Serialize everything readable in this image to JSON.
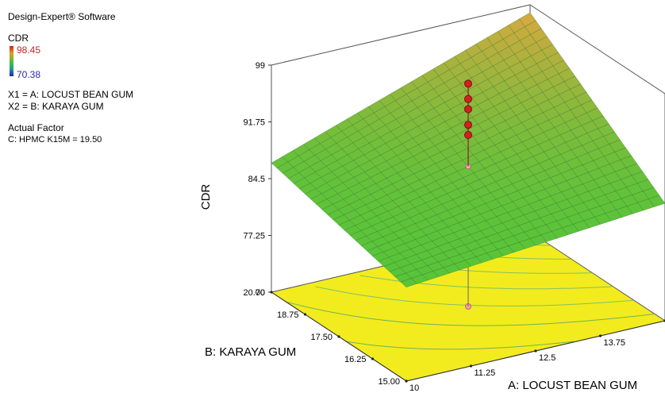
{
  "header": {
    "software": "Design-Expert® Software",
    "response_name": "CDR",
    "response_max": "98.45",
    "response_min": "70.38",
    "x1_def": "X1 = A: LOCUST BEAN GUM",
    "x2_def": "X2 = B: KARAYA GUM",
    "actual_factor_title": "Actual Factor",
    "actual_factor_value": "C:  HPMC K15M = 19.50"
  },
  "colors": {
    "surface": "#58c43a",
    "surface_high": "#d8a840",
    "floor": "#f2ec1e",
    "points": "#d42020",
    "colorbar_top": "#d42020",
    "colorbar_bottom": "#2020c0"
  },
  "chart_data": {
    "type": "surface3d",
    "title": "",
    "xlabel": "A: LOCUST BEAN GUM",
    "ylabel": "B: KARAYA GUM",
    "zlabel": "CDR",
    "xlim": [
      10,
      15
    ],
    "ylim": [
      15,
      20
    ],
    "zlim": [
      70,
      99
    ],
    "x_ticks": [
      "10",
      "11.25",
      "12.5",
      "13.75",
      "15"
    ],
    "y_ticks": [
      "15.00",
      "16.25",
      "17.50",
      "18.75",
      "20.00"
    ],
    "z_ticks": [
      "70",
      "77.25",
      "84.5",
      "91.75",
      "99"
    ],
    "surface_corners": {
      "x10_y15": 82.0,
      "x15_y15": 85.0,
      "x10_y20": 86.5,
      "x15_y20": 98.0
    },
    "design_points": [
      {
        "x": 12.5,
        "y": 17.5,
        "z": 98.45
      },
      {
        "x": 12.5,
        "y": 17.5,
        "z": 96.5
      },
      {
        "x": 12.5,
        "y": 17.5,
        "z": 95.2
      },
      {
        "x": 12.5,
        "y": 17.5,
        "z": 93.2
      },
      {
        "x": 12.5,
        "y": 17.5,
        "z": 91.9
      }
    ],
    "center_point": {
      "x": 12.5,
      "y": 17.5,
      "z": 89.0
    },
    "floor_contours": true,
    "grid": false
  }
}
